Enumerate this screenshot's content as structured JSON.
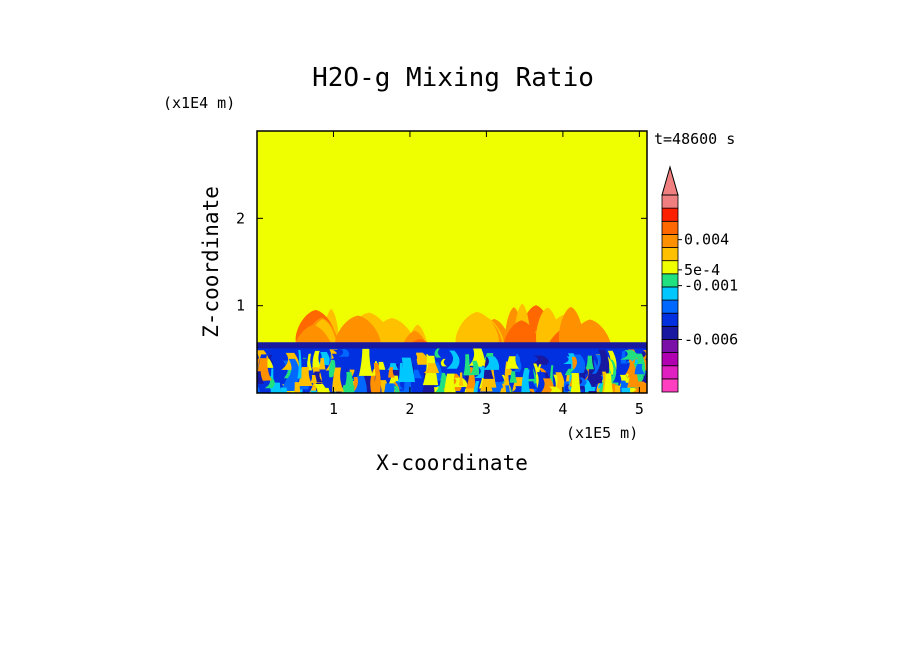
{
  "chart_data": {
    "type": "heatmap",
    "title": "H2O-g Mixing Ratio",
    "xlabel": "X-coordinate",
    "ylabel": "Z-coordinate",
    "x_unit": "(x1E5 m)",
    "y_unit": "(x1E4 m)",
    "time_label": "t=48600 s",
    "xlim": [
      0,
      5.1
    ],
    "ylim": [
      0,
      3.0
    ],
    "x_ticks": [
      {
        "value": 1,
        "label": "1"
      },
      {
        "value": 2,
        "label": "2"
      },
      {
        "value": 3,
        "label": "3"
      },
      {
        "value": 4,
        "label": "4"
      },
      {
        "value": 5,
        "label": "5"
      }
    ],
    "y_ticks": [
      {
        "value": 1,
        "label": "1"
      },
      {
        "value": 2,
        "label": "2"
      }
    ],
    "background_color": "#f0ff00",
    "boundary_layer_top": 0.58,
    "colorbar": {
      "levels": [
        {
          "color": "#ff3fbf"
        },
        {
          "color": "#e020c0"
        },
        {
          "color": "#b000b0"
        },
        {
          "color": "#7a10a8"
        },
        {
          "color": "#1818a0"
        },
        {
          "color": "#0030e0"
        },
        {
          "color": "#0068ff"
        },
        {
          "color": "#00c8ff"
        },
        {
          "color": "#20e080"
        },
        {
          "color": "#f0ff00"
        },
        {
          "color": "#ffc000"
        },
        {
          "color": "#ff9000"
        },
        {
          "color": "#ff6800"
        },
        {
          "color": "#ff2000"
        },
        {
          "color": "#f08080"
        }
      ],
      "labels": [
        {
          "text": "0.004",
          "position": 11.6
        },
        {
          "text": "5e-4",
          "position": 9.3
        },
        {
          "text": "-0.001",
          "position": 8.1
        },
        {
          "text": "-0.006",
          "position": 4.0
        }
      ],
      "extend_top": true,
      "extend_color": "#f08080"
    },
    "plumes": [
      {
        "x": 0.75,
        "top": 1.0
      },
      {
        "x": 1.55,
        "top": 0.92
      },
      {
        "x": 2.15,
        "top": 0.82
      },
      {
        "x": 3.1,
        "top": 1.0
      },
      {
        "x": 3.6,
        "top": 1.0
      },
      {
        "x": 4.25,
        "top": 1.0
      }
    ]
  }
}
